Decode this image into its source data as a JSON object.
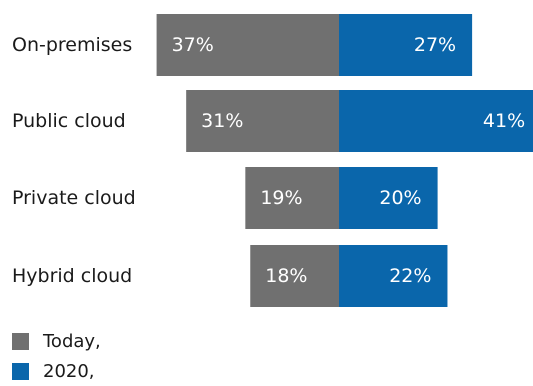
{
  "chart_data": {
    "type": "bar",
    "orientation": "diverging horizontal",
    "categories": [
      "On-premises",
      "Public cloud",
      "Private cloud",
      "Hybrid cloud"
    ],
    "series": [
      {
        "name": "Today,",
        "values": [
          37,
          31,
          19,
          18
        ],
        "labels": [
          "37%",
          "31%",
          "19%",
          "18%"
        ],
        "color": "#707070",
        "direction": "left"
      },
      {
        "name": "2020,",
        "values": [
          27,
          41,
          20,
          22
        ],
        "labels": [
          "27%",
          "41%",
          "20%",
          "22%"
        ],
        "color": "#0a66ab",
        "direction": "right"
      }
    ],
    "unit": "%",
    "gridlines": false,
    "axes_visible": false,
    "legend_position": "bottom-left",
    "label_color": "#ffffff"
  }
}
